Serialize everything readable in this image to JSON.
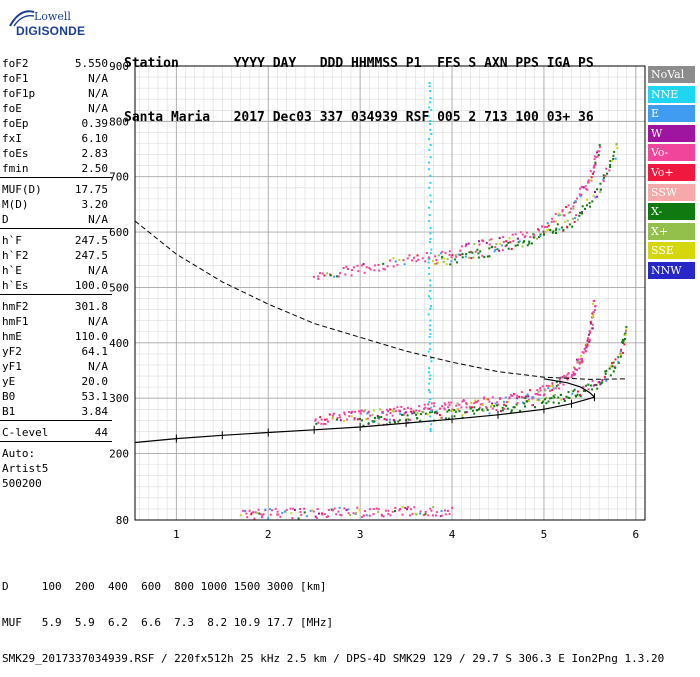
{
  "logo": {
    "line1": "Lowell",
    "line2": "DIGISONDE"
  },
  "header": {
    "columns": [
      {
        "h": "Station",
        "v": "Santa Maria"
      },
      {
        "h": "YYYY",
        "v": "2017"
      },
      {
        "h": "DAY",
        "v": "Dec03"
      },
      {
        "h": "DDD",
        "v": "337"
      },
      {
        "h": "HHMMSS",
        "v": "034939"
      },
      {
        "h": "P1",
        "v": "RSF"
      },
      {
        "h": "FFS",
        "v": "005"
      },
      {
        "h": "S",
        "v": "2"
      },
      {
        "h": "AXN",
        "v": "713"
      },
      {
        "h": "PPS",
        "v": "100"
      },
      {
        "h": "IGA",
        "v": "03+"
      },
      {
        "h": "PS",
        "v": "36"
      }
    ]
  },
  "params": {
    "group1": [
      {
        "label": "foF2",
        "value": "5.550"
      },
      {
        "label": "foF1",
        "value": "N/A"
      },
      {
        "label": "foF1p",
        "value": "N/A"
      },
      {
        "label": "foE",
        "value": "N/A"
      },
      {
        "label": "foEp",
        "value": "0.39"
      },
      {
        "label": "fxI",
        "value": "6.10"
      },
      {
        "label": "foEs",
        "value": "2.83"
      },
      {
        "label": "fmin",
        "value": "2.50"
      }
    ],
    "group2": [
      {
        "label": "MUF(D)",
        "value": "17.75"
      },
      {
        "label": "M(D)",
        "value": "3.20"
      },
      {
        "label": "D",
        "value": "N/A"
      }
    ],
    "group3": [
      {
        "label": "h`F",
        "value": "247.5"
      },
      {
        "label": "h`F2",
        "value": "247.5"
      },
      {
        "label": "h`E",
        "value": "N/A"
      },
      {
        "label": "h`Es",
        "value": "100.0"
      }
    ],
    "group4": [
      {
        "label": "hmF2",
        "value": "301.8"
      },
      {
        "label": "hmF1",
        "value": "N/A"
      },
      {
        "label": "hmE",
        "value": "110.0"
      },
      {
        "label": "yF2",
        "value": "64.1"
      },
      {
        "label": "yF1",
        "value": "N/A"
      },
      {
        "label": "yE",
        "value": "20.0"
      },
      {
        "label": "B0",
        "value": "53.1"
      },
      {
        "label": "B1",
        "value": "3.84"
      }
    ],
    "group5": [
      {
        "label": "C-level",
        "value": "44"
      }
    ],
    "auto_lines": [
      "Auto:",
      "Artist5",
      "500200"
    ]
  },
  "legend": [
    {
      "label": "NoVal",
      "color": "#8c8c8c"
    },
    {
      "label": "NNE",
      "color": "#1fd6f2"
    },
    {
      "label": "E",
      "color": "#3f9cf0"
    },
    {
      "label": "W",
      "color": "#a0159f"
    },
    {
      "label": "Vo-",
      "color": "#f0459a"
    },
    {
      "label": "Vo+",
      "color": "#f0183e"
    },
    {
      "label": "SSW",
      "color": "#f7a9a9"
    },
    {
      "label": "X-",
      "color": "#107a10"
    },
    {
      "label": "X+",
      "color": "#93c04a"
    },
    {
      "label": "SSE",
      "color": "#d6d60c"
    },
    {
      "label": "NNW",
      "color": "#2727c8"
    }
  ],
  "footer": {
    "line1": "D     100  200  400  600  800 1000 1500 3000 [km]",
    "line2": "MUF   5.9  5.9  6.2  6.6  7.3  8.2 10.9 17.7 [MHz]",
    "line3": "SMK29_2017337034939.RSF / 220fx512h 25 kHz 2.5 km / DPS-4D SMK29 129 / 29.7 S 306.3 E Ion2Png 1.3.20"
  },
  "chart_data": {
    "type": "scatter",
    "xlim": [
      0.55,
      6.1
    ],
    "ylim": [
      80,
      900
    ],
    "x_ticks": [
      1,
      2,
      3,
      4,
      5,
      6
    ],
    "y_ticks": [
      80,
      200,
      300,
      400,
      500,
      600,
      700,
      800,
      900
    ],
    "grid": true,
    "series": [
      {
        "name": "Vo-",
        "kind": "trace_F2_O",
        "points": [
          [
            2.5,
            262
          ],
          [
            2.8,
            267
          ],
          [
            3.1,
            272
          ],
          [
            3.4,
            277
          ],
          [
            3.7,
            282
          ],
          [
            4.0,
            287
          ],
          [
            4.3,
            293
          ],
          [
            4.6,
            300
          ],
          [
            4.9,
            310
          ],
          [
            5.1,
            322
          ],
          [
            5.3,
            345
          ],
          [
            5.4,
            375
          ],
          [
            5.5,
            420
          ],
          [
            5.55,
            480
          ]
        ]
      },
      {
        "name": "X-",
        "kind": "trace_F2_X",
        "points": [
          [
            3.0,
            258
          ],
          [
            3.4,
            264
          ],
          [
            3.8,
            270
          ],
          [
            4.2,
            276
          ],
          [
            4.6,
            284
          ],
          [
            5.0,
            294
          ],
          [
            5.3,
            308
          ],
          [
            5.6,
            330
          ],
          [
            5.8,
            370
          ],
          [
            5.9,
            430
          ]
        ]
      },
      {
        "name": "Vo-",
        "kind": "trace_F2_2hop",
        "points": [
          [
            2.5,
            520
          ],
          [
            3.0,
            535
          ],
          [
            3.5,
            550
          ],
          [
            4.0,
            565
          ],
          [
            4.5,
            585
          ],
          [
            5.0,
            610
          ],
          [
            5.3,
            650
          ],
          [
            5.5,
            700
          ],
          [
            5.6,
            760
          ]
        ]
      },
      {
        "name": "X-",
        "kind": "trace_F2_2hop_X",
        "points": [
          [
            3.8,
            545
          ],
          [
            4.2,
            560
          ],
          [
            4.6,
            575
          ],
          [
            5.0,
            595
          ],
          [
            5.3,
            620
          ],
          [
            5.6,
            680
          ],
          [
            5.8,
            760
          ]
        ]
      },
      {
        "name": "Vo-",
        "kind": "trace_Es",
        "points": [
          [
            1.7,
            92
          ],
          [
            2.0,
            93
          ],
          [
            2.4,
            94
          ],
          [
            2.8,
            95
          ],
          [
            3.2,
            96
          ],
          [
            3.6,
            97
          ],
          [
            4.0,
            98
          ]
        ]
      },
      {
        "name": "NNE",
        "kind": "trace_spur",
        "points": [
          [
            3.75,
            240
          ],
          [
            3.75,
            350
          ],
          [
            3.75,
            470
          ],
          [
            3.75,
            600
          ],
          [
            3.75,
            760
          ],
          [
            3.75,
            880
          ]
        ]
      }
    ],
    "profile": {
      "description_label": "",
      "points": [
        [
          0.55,
          220
        ],
        [
          1.0,
          227
        ],
        [
          1.5,
          233
        ],
        [
          2.0,
          238
        ],
        [
          2.5,
          243
        ],
        [
          3.0,
          248
        ],
        [
          3.5,
          255
        ],
        [
          4.0,
          262
        ],
        [
          4.5,
          270
        ],
        [
          5.0,
          280
        ],
        [
          5.3,
          290
        ],
        [
          5.55,
          301.8
        ]
      ],
      "tail": [
        [
          5.55,
          301.8
        ],
        [
          5.5,
          310
        ],
        [
          5.4,
          320
        ],
        [
          5.25,
          328
        ],
        [
          5.0,
          335
        ]
      ]
    },
    "dashed_curve": {
      "points": [
        [
          0.55,
          620
        ],
        [
          1.0,
          560
        ],
        [
          1.5,
          510
        ],
        [
          2.0,
          470
        ],
        [
          2.5,
          435
        ],
        [
          3.0,
          410
        ],
        [
          3.5,
          385
        ],
        [
          4.0,
          365
        ],
        [
          4.5,
          348
        ],
        [
          5.0,
          338
        ],
        [
          5.5,
          334
        ],
        [
          5.9,
          335
        ]
      ]
    }
  }
}
